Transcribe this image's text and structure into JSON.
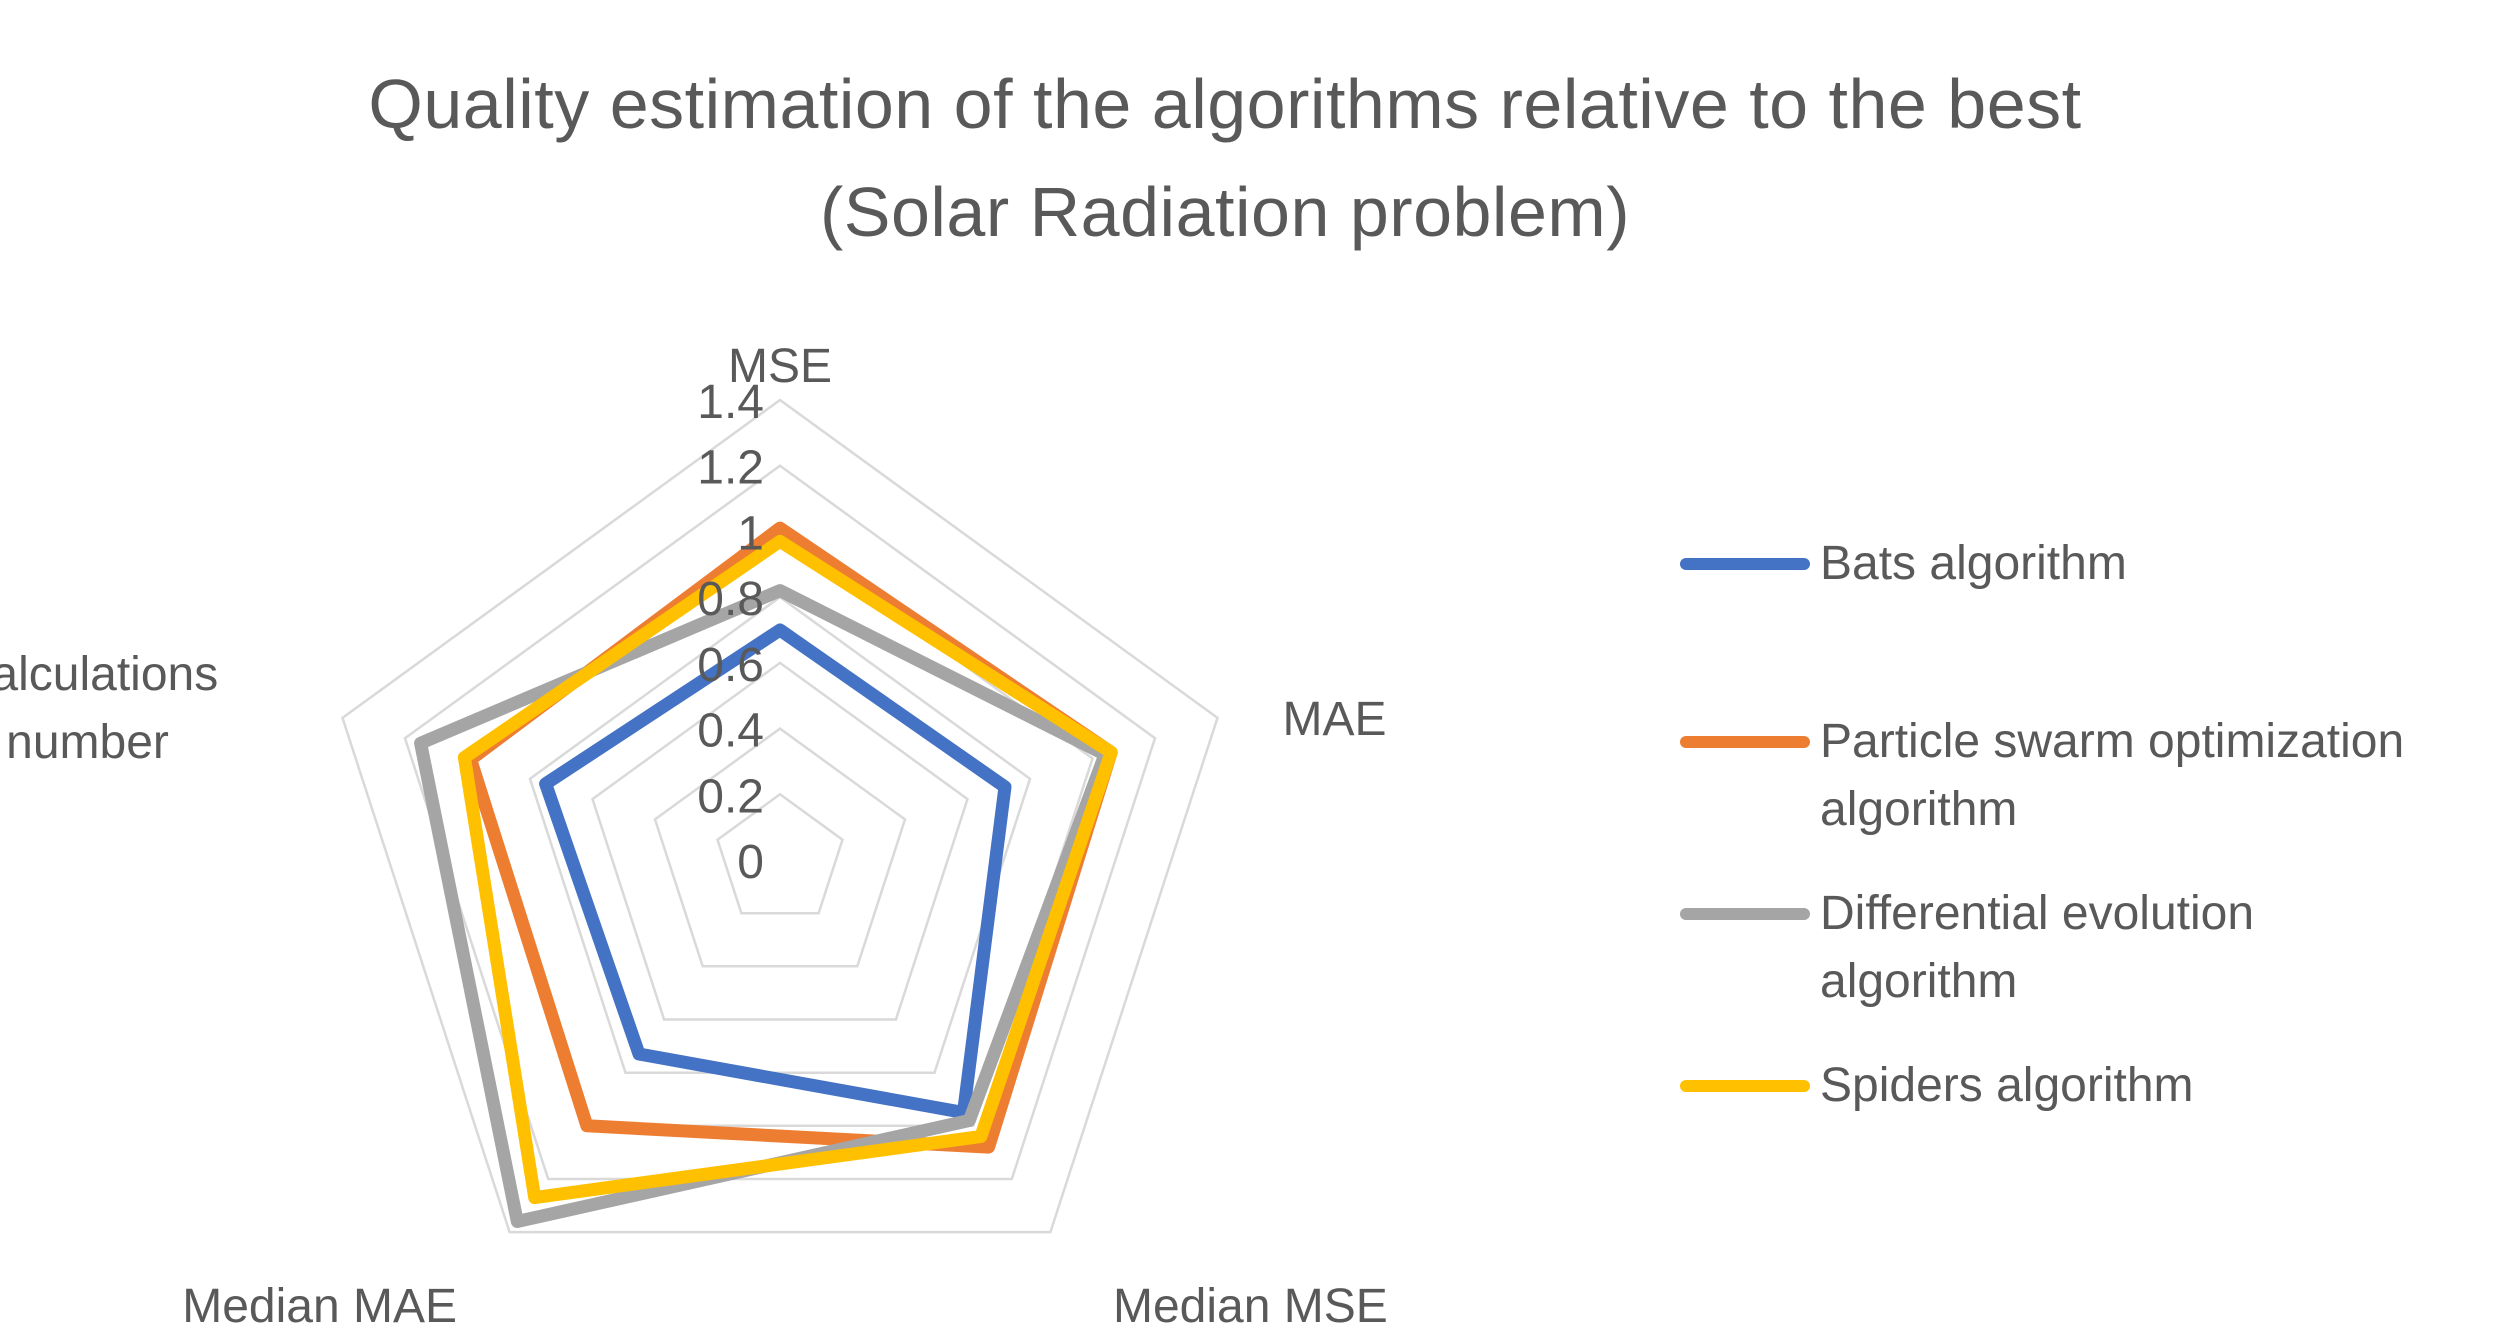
{
  "chart_data": {
    "type": "radar",
    "title": "Quality estimation of the algorithms relative to the best",
    "subtitle": "(Solar Radiation problem)",
    "axes": [
      "MSE",
      "MAE",
      "Median MSE",
      "Median MAE",
      "Calculations number"
    ],
    "axis_label_lines": [
      [
        "MSE"
      ],
      [
        "MAE"
      ],
      [
        "Median MSE"
      ],
      [
        "Median MAE"
      ],
      [
        "Calculations",
        "number"
      ]
    ],
    "rlim": [
      0,
      1.4
    ],
    "ticks": [
      "0",
      "0.2",
      "0.4",
      "0.6",
      "0.8",
      "1",
      "1.2",
      "1.4"
    ],
    "tick_values": [
      0,
      0.2,
      0.4,
      0.6,
      0.8,
      1.0,
      1.2,
      1.4
    ],
    "grid": true,
    "legend_position": "right",
    "series": [
      {
        "name": "Bats algorithm",
        "legend_lines": [
          "Bats algorithm"
        ],
        "color": "#4472C4",
        "values": [
          0.7,
          0.72,
          0.95,
          0.73,
          0.75
        ]
      },
      {
        "name": "Particle swarm optimization algorithm",
        "legend_lines": [
          "Particle swarm optimization",
          "algorithm"
        ],
        "color": "#ED7D31",
        "values": [
          1.01,
          1.06,
          1.08,
          1.0,
          0.99
        ]
      },
      {
        "name": "Differential evolution algorithm",
        "legend_lines": [
          "Differential evolution",
          "algorithm"
        ],
        "color": "#A5A5A5",
        "values": [
          0.82,
          1.04,
          0.98,
          1.36,
          1.15
        ]
      },
      {
        "name": "Spiders algorithm",
        "legend_lines": [
          "Spiders algorithm"
        ],
        "color": "#FFC000",
        "values": [
          0.97,
          1.06,
          1.04,
          1.27,
          1.01
        ]
      }
    ]
  }
}
